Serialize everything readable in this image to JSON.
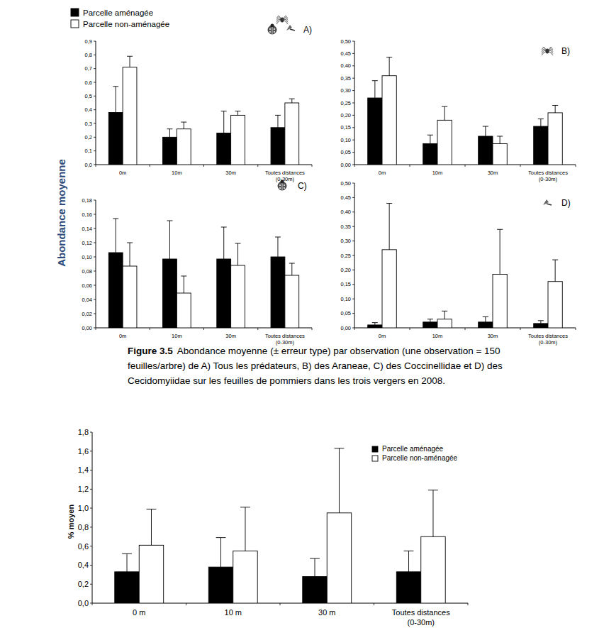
{
  "chart_data": [
    {
      "type": "bar",
      "title": "A)",
      "y_label": "Abondance moyenne",
      "legend": "upper left",
      "categories": [
        "0m",
        "10m",
        "30m",
        "Toutes distances\n(0-30m)"
      ],
      "ylim": [
        0,
        0.9
      ],
      "yticks": [
        {
          "value": 0,
          "label": "0,0"
        },
        {
          "value": 0.1,
          "label": "0,1"
        },
        {
          "value": 0.2,
          "label": "0,2"
        },
        {
          "value": 0.3,
          "label": "0,3"
        },
        {
          "value": 0.4,
          "label": "0,4"
        },
        {
          "value": 0.5,
          "label": "0,5"
        },
        {
          "value": 0.6,
          "label": "0,6"
        },
        {
          "value": 0.7,
          "label": "0,7"
        },
        {
          "value": 0.8,
          "label": "0,8"
        },
        {
          "value": 0.9,
          "label": "0,9"
        }
      ],
      "series": [
        {
          "name": "Parcelle aménagée",
          "color": "#000000",
          "values": [
            0.38,
            0.2,
            0.23,
            0.27
          ],
          "errors": [
            0.19,
            0.06,
            0.16,
            0.09
          ]
        },
        {
          "name": "Parcelle non-aménagée",
          "color": "#ffffff",
          "values": [
            0.71,
            0.26,
            0.36,
            0.45
          ],
          "errors": [
            0.08,
            0.05,
            0.03,
            0.03
          ]
        }
      ]
    },
    {
      "type": "bar",
      "title": "B)",
      "categories": [
        "0m",
        "10m",
        "30m",
        "Toutes distances\n(0-30m)"
      ],
      "ylim": [
        0,
        0.5
      ],
      "yticks": [
        {
          "value": 0,
          "label": "0,00"
        },
        {
          "value": 0.05,
          "label": "0,05"
        },
        {
          "value": 0.1,
          "label": "0,10"
        },
        {
          "value": 0.15,
          "label": "0,15"
        },
        {
          "value": 0.2,
          "label": "0,20"
        },
        {
          "value": 0.25,
          "label": "0,25"
        },
        {
          "value": 0.3,
          "label": "0,30"
        },
        {
          "value": 0.35,
          "label": "0,35"
        },
        {
          "value": 0.4,
          "label": "0,40"
        },
        {
          "value": 0.45,
          "label": "0,45"
        },
        {
          "value": 0.5,
          "label": "0,50"
        }
      ],
      "series": [
        {
          "color": "#000000",
          "values": [
            0.27,
            0.085,
            0.115,
            0.155
          ],
          "errors": [
            0.07,
            0.035,
            0.04,
            0.03
          ]
        },
        {
          "color": "#ffffff",
          "values": [
            0.36,
            0.18,
            0.085,
            0.21
          ],
          "errors": [
            0.075,
            0.055,
            0.03,
            0.03
          ]
        }
      ]
    },
    {
      "type": "bar",
      "title": "C)",
      "categories": [
        "0m",
        "10m",
        "30m",
        "Toutes distances\n(0-30m)"
      ],
      "ylim": [
        0,
        0.18
      ],
      "yticks": [
        {
          "value": 0,
          "label": "0,00"
        },
        {
          "value": 0.02,
          "label": "0,02"
        },
        {
          "value": 0.04,
          "label": "0,04"
        },
        {
          "value": 0.06,
          "label": "0,06"
        },
        {
          "value": 0.08,
          "label": "0,08"
        },
        {
          "value": 0.1,
          "label": "0,10"
        },
        {
          "value": 0.12,
          "label": "0,12"
        },
        {
          "value": 0.14,
          "label": "0,14"
        },
        {
          "value": 0.16,
          "label": "0,16"
        },
        {
          "value": 0.18,
          "label": "0,18"
        }
      ],
      "series": [
        {
          "color": "#000000",
          "values": [
            0.106,
            0.097,
            0.097,
            0.1
          ],
          "errors": [
            0.048,
            0.054,
            0.045,
            0.028
          ]
        },
        {
          "color": "#ffffff",
          "values": [
            0.087,
            0.049,
            0.088,
            0.074
          ],
          "errors": [
            0.033,
            0.024,
            0.031,
            0.017
          ]
        }
      ]
    },
    {
      "type": "bar",
      "title": "D)",
      "categories": [
        "0m",
        "10m",
        "30m",
        "Toutes distances\n(0-30m)"
      ],
      "ylim": [
        0,
        0.5
      ],
      "yticks": [
        {
          "value": 0,
          "label": "0,00"
        },
        {
          "value": 0.05,
          "label": "0,05"
        },
        {
          "value": 0.1,
          "label": "0,10"
        },
        {
          "value": 0.15,
          "label": "0,15"
        },
        {
          "value": 0.2,
          "label": "0,20"
        },
        {
          "value": 0.25,
          "label": "0,25"
        },
        {
          "value": 0.3,
          "label": "0,30"
        },
        {
          "value": 0.35,
          "label": "0,35"
        },
        {
          "value": 0.4,
          "label": "0,40"
        },
        {
          "value": 0.45,
          "label": "0,45"
        },
        {
          "value": 0.5,
          "label": "0,50"
        }
      ],
      "series": [
        {
          "color": "#000000",
          "values": [
            0.01,
            0.02,
            0.02,
            0.015
          ],
          "errors": [
            0.008,
            0.01,
            0.018,
            0.01
          ]
        },
        {
          "color": "#ffffff",
          "values": [
            0.27,
            0.03,
            0.185,
            0.16
          ],
          "errors": [
            0.16,
            0.028,
            0.155,
            0.075
          ]
        }
      ]
    },
    {
      "type": "bar",
      "y_label": "% moyen",
      "legend": "upper right",
      "categories": [
        "0 m",
        "10 m",
        "30 m",
        "Toutes distances\n(0-30m)"
      ],
      "ylim": [
        0,
        1.8
      ],
      "yticks": [
        {
          "value": 0,
          "label": "0,0"
        },
        {
          "value": 0.2,
          "label": "0,2"
        },
        {
          "value": 0.4,
          "label": "0,4"
        },
        {
          "value": 0.6,
          "label": "0,6"
        },
        {
          "value": 0.8,
          "label": "0,8"
        },
        {
          "value": 1.0,
          "label": "1,0"
        },
        {
          "value": 1.2,
          "label": "1,2"
        },
        {
          "value": 1.4,
          "label": "1,4"
        },
        {
          "value": 1.6,
          "label": "1,6"
        },
        {
          "value": 1.8,
          "label": "1,8"
        }
      ],
      "series": [
        {
          "name": "Parcelle aménagée",
          "color": "#000000",
          "values": [
            0.33,
            0.38,
            0.28,
            0.33
          ],
          "errors": [
            0.19,
            0.31,
            0.19,
            0.22
          ]
        },
        {
          "name": "Parcelle non-aménagée",
          "color": "#ffffff",
          "values": [
            0.61,
            0.55,
            0.95,
            0.7
          ],
          "errors": [
            0.38,
            0.46,
            0.68,
            0.49
          ]
        }
      ]
    }
  ],
  "caption": {
    "label": "Figure 3.5",
    "lines": [
      "Abondance moyenne (± erreur type) par observation (une observation = 150",
      "feuilles/arbre) de A) Tous les prédateurs, B) des Araneae, C) des Coccinellidae et D) des",
      "Cecidomyiidae sur les feuilles de pommiers dans les trois vergers en 2008."
    ]
  }
}
